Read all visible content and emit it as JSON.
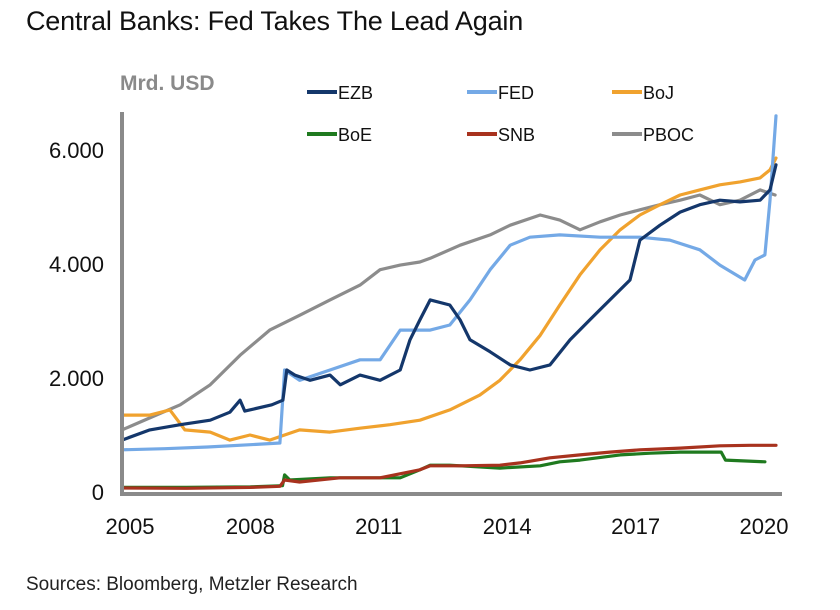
{
  "title": "Central Banks: Fed Takes The Lead Again",
  "source": "Sources: Bloomberg, Metzler Research",
  "chart_data": {
    "type": "line",
    "title": "Central Banks: Fed Takes The Lead Again",
    "ylabel": "Mrd. USD",
    "xlabel": "",
    "xlim": [
      2005,
      2020.3
    ],
    "ylim": [
      0,
      6600
    ],
    "x_ticks": [
      2005,
      2008,
      2011,
      2014,
      2017,
      2020
    ],
    "x_tick_labels": [
      "2005",
      "2008",
      "2011",
      "2014",
      "2017",
      "2020"
    ],
    "y_ticks": [
      0,
      2000,
      4000,
      6000
    ],
    "y_tick_labels": [
      "0",
      "2.000",
      "4.000",
      "6.000"
    ],
    "grid": false,
    "legend_position": "top",
    "series": [
      {
        "name": "EZB",
        "color": "#14376b",
        "x": [
          2005.0,
          2005.65,
          2006.36,
          2007.06,
          2007.52,
          2007.76,
          2007.87,
          2008.5,
          2008.76,
          2008.85,
          2009.04,
          2009.39,
          2009.86,
          2010.1,
          2010.56,
          2011.03,
          2011.5,
          2011.73,
          2011.96,
          2012.2,
          2012.66,
          2012.9,
          2013.13,
          2013.6,
          2014.07,
          2014.53,
          2015.0,
          2015.47,
          2015.93,
          2016.4,
          2016.87,
          2017.1,
          2017.57,
          2018.04,
          2018.5,
          2018.97,
          2019.44,
          2019.91,
          2020.14,
          2020.28
        ],
        "values": [
          910,
          1090,
          1180,
          1260,
          1400,
          1610,
          1420,
          1530,
          1610,
          2140,
          2050,
          1960,
          2050,
          1880,
          2050,
          1960,
          2140,
          2670,
          3020,
          3370,
          3280,
          3020,
          2670,
          2460,
          2230,
          2140,
          2230,
          2670,
          3020,
          3370,
          3720,
          4420,
          4680,
          4910,
          5040,
          5120,
          5090,
          5120,
          5300,
          5740
        ]
      },
      {
        "name": "FED",
        "color": "#74a9e6",
        "x": [
          2005.0,
          2006.0,
          2007.0,
          2008.0,
          2008.69,
          2008.8,
          2009.15,
          2009.86,
          2010.56,
          2011.03,
          2011.5,
          2012.2,
          2012.66,
          2013.13,
          2013.6,
          2014.07,
          2014.53,
          2015.23,
          2016.17,
          2017.1,
          2017.8,
          2018.5,
          2018.97,
          2019.55,
          2019.79,
          2020.02,
          2020.14,
          2020.28
        ],
        "values": [
          740,
          760,
          790,
          830,
          860,
          2140,
          1960,
          2140,
          2320,
          2320,
          2840,
          2840,
          2930,
          3370,
          3900,
          4330,
          4470,
          4510,
          4470,
          4470,
          4420,
          4250,
          3980,
          3720,
          4070,
          4160,
          5120,
          6600
        ]
      },
      {
        "name": "BoJ",
        "color": "#f0a22e",
        "x": [
          2005.0,
          2005.65,
          2006.12,
          2006.47,
          2007.06,
          2007.52,
          2007.99,
          2008.45,
          2008.8,
          2009.15,
          2009.86,
          2010.56,
          2011.26,
          2011.96,
          2012.66,
          2013.36,
          2013.83,
          2014.3,
          2014.77,
          2015.23,
          2015.7,
          2016.17,
          2016.64,
          2017.1,
          2017.57,
          2018.04,
          2018.5,
          2018.97,
          2019.44,
          2019.91,
          2020.14,
          2020.28
        ],
        "values": [
          1350,
          1350,
          1440,
          1090,
          1050,
          910,
          1000,
          910,
          1000,
          1090,
          1050,
          1120,
          1180,
          1260,
          1440,
          1700,
          1960,
          2320,
          2750,
          3280,
          3810,
          4250,
          4600,
          4860,
          5040,
          5210,
          5300,
          5390,
          5440,
          5510,
          5650,
          5860
        ]
      },
      {
        "name": "BoE",
        "color": "#1f7a1f",
        "x": [
          2005.0,
          2006.5,
          2008.0,
          2008.75,
          2008.8,
          2008.92,
          2009.86,
          2010.56,
          2011.5,
          2011.96,
          2012.2,
          2012.66,
          2013.83,
          2014.77,
          2015.23,
          2015.7,
          2016.64,
          2017.34,
          2018.04,
          2019.0,
          2019.1,
          2020.02
        ],
        "values": [
          80,
          80,
          90,
          110,
          300,
          210,
          250,
          250,
          250,
          390,
          470,
          470,
          420,
          460,
          530,
          560,
          650,
          680,
          700,
          700,
          560,
          530
        ]
      },
      {
        "name": "SNB",
        "color": "#a8321e",
        "x": [
          2005.0,
          2006.5,
          2008.0,
          2008.69,
          2008.8,
          2009.15,
          2010.09,
          2011.03,
          2011.96,
          2012.2,
          2012.9,
          2013.83,
          2014.3,
          2015.0,
          2015.7,
          2016.4,
          2017.1,
          2018.04,
          2018.97,
          2019.67,
          2020.28
        ],
        "values": [
          70,
          65,
          80,
          100,
          210,
          175,
          250,
          250,
          390,
          460,
          460,
          470,
          510,
          600,
          650,
          700,
          740,
          770,
          810,
          820,
          820
        ]
      },
      {
        "name": "PBOC",
        "color": "#8c8c8c",
        "x": [
          2005.0,
          2005.65,
          2006.36,
          2007.06,
          2007.76,
          2008.45,
          2009.15,
          2009.86,
          2010.56,
          2011.03,
          2011.5,
          2011.96,
          2012.2,
          2012.9,
          2013.6,
          2014.07,
          2014.77,
          2015.23,
          2015.7,
          2016.17,
          2016.64,
          2017.1,
          2017.57,
          2018.04,
          2018.5,
          2018.97,
          2019.44,
          2019.91,
          2020.26
        ],
        "values": [
          1090,
          1300,
          1530,
          1880,
          2400,
          2840,
          3100,
          3370,
          3630,
          3900,
          3980,
          4035,
          4100,
          4330,
          4510,
          4680,
          4860,
          4770,
          4600,
          4740,
          4860,
          4950,
          5040,
          5120,
          5210,
          5040,
          5120,
          5300,
          5210
        ]
      }
    ],
    "legend": [
      "EZB",
      "FED",
      "BoJ",
      "BoE",
      "SNB",
      "PBOC"
    ]
  }
}
